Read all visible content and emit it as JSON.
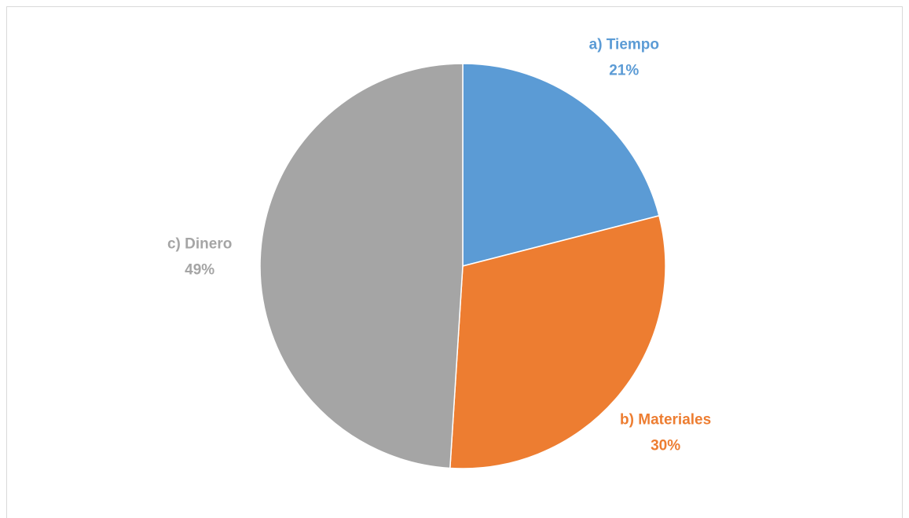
{
  "chart_data": {
    "type": "pie",
    "categories": [
      "a) Tiempo",
      "b) Materiales",
      "c) Dinero"
    ],
    "values": [
      21,
      30,
      49
    ],
    "value_labels": [
      "21%",
      "30%",
      "49%"
    ],
    "colors": [
      "#5b9bd5",
      "#ed7d31",
      "#a5a5a5"
    ]
  }
}
